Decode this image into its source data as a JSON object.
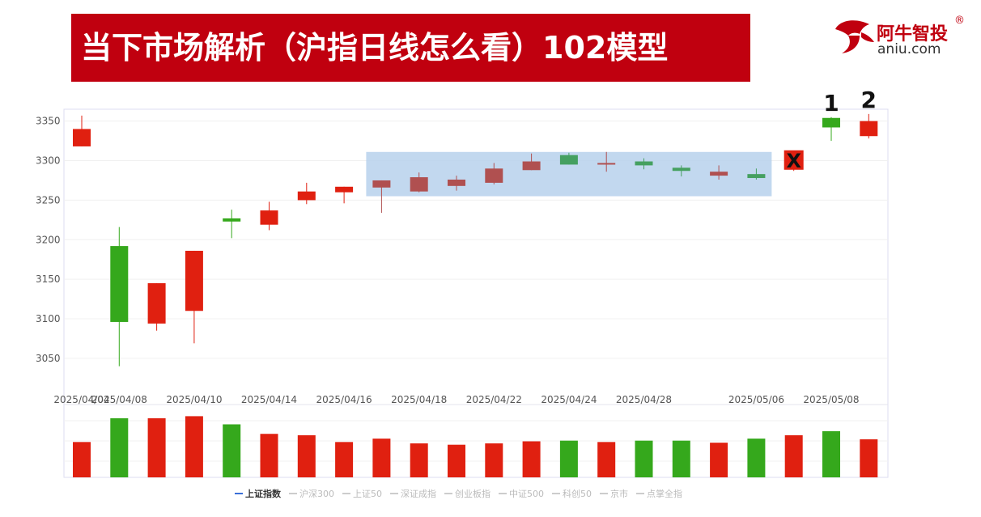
{
  "title": "当下市场解析（沪指日线怎么看）102模型",
  "logo": {
    "name_cn": "阿牛智投",
    "reg": "®",
    "domain": "aniu.com"
  },
  "colors": {
    "up": "#e02010",
    "down": "#35a81c",
    "highlight": "#b7d1ec",
    "banner": "#c0000f"
  },
  "chart_data": {
    "type": "candlestick",
    "ylim": [
      3010,
      3365
    ],
    "yticks": [
      3050,
      3100,
      3150,
      3200,
      3250,
      3300,
      3350
    ],
    "xticklabels": [
      {
        "index": 0,
        "label": "2025/04/04"
      },
      {
        "index": 1,
        "label": "2025/04/08"
      },
      {
        "index": 3,
        "label": "2025/04/10"
      },
      {
        "index": 5,
        "label": "2025/04/14"
      },
      {
        "index": 7,
        "label": "2025/04/16"
      },
      {
        "index": 9,
        "label": "2025/04/18"
      },
      {
        "index": 11,
        "label": "2025/04/22"
      },
      {
        "index": 13,
        "label": "2025/04/24"
      },
      {
        "index": 15,
        "label": "2025/04/28"
      },
      {
        "index": 18,
        "label": "2025/05/06"
      },
      {
        "index": 20,
        "label": "2025/05/08"
      }
    ],
    "candles": [
      {
        "open": 3318,
        "close": 3340,
        "high": 3357,
        "low": 3318,
        "color": "up"
      },
      {
        "open": 3192,
        "close": 3096,
        "high": 3216,
        "low": 3040,
        "color": "down"
      },
      {
        "open": 3094,
        "close": 3145,
        "high": 3145,
        "low": 3085,
        "color": "up"
      },
      {
        "open": 3110,
        "close": 3186,
        "high": 3186,
        "low": 3069,
        "color": "up"
      },
      {
        "open": 3227,
        "close": 3223,
        "high": 3238,
        "low": 3202,
        "color": "down"
      },
      {
        "open": 3219,
        "close": 3237,
        "high": 3248,
        "low": 3212,
        "color": "up"
      },
      {
        "open": 3250,
        "close": 3261,
        "high": 3272,
        "low": 3245,
        "color": "up"
      },
      {
        "open": 3260,
        "close": 3267,
        "high": 3267,
        "low": 3246,
        "color": "up"
      },
      {
        "open": 3266,
        "close": 3275,
        "high": 3275,
        "low": 3234,
        "color": "up"
      },
      {
        "open": 3261,
        "close": 3279,
        "high": 3285,
        "low": 3260,
        "color": "up"
      },
      {
        "open": 3268,
        "close": 3276,
        "high": 3281,
        "low": 3262,
        "color": "up"
      },
      {
        "open": 3272,
        "close": 3290,
        "high": 3297,
        "low": 3270,
        "color": "up"
      },
      {
        "open": 3288,
        "close": 3299,
        "high": 3309,
        "low": 3288,
        "color": "up"
      },
      {
        "open": 3307,
        "close": 3295,
        "high": 3310,
        "low": 3295,
        "color": "down"
      },
      {
        "open": 3295,
        "close": 3297,
        "high": 3311,
        "low": 3286,
        "color": "up"
      },
      {
        "open": 3299,
        "close": 3294,
        "high": 3303,
        "low": 3289,
        "color": "down"
      },
      {
        "open": 3291,
        "close": 3287,
        "high": 3294,
        "low": 3280,
        "color": "down"
      },
      {
        "open": 3281,
        "close": 3286,
        "high": 3294,
        "low": 3276,
        "color": "up"
      },
      {
        "open": 3283,
        "close": 3278,
        "high": 3290,
        "low": 3276,
        "color": "down"
      },
      {
        "open": 3292,
        "close": 3311,
        "high": 3311,
        "low": 3287,
        "color": "up"
      },
      {
        "open": 3354,
        "close": 3342,
        "high": 3355,
        "low": 3325,
        "color": "down"
      },
      {
        "open": 3331,
        "close": 3350,
        "high": 3359,
        "low": 3328,
        "color": "up"
      }
    ],
    "volume": [
      0.52,
      0.87,
      0.87,
      0.9,
      0.78,
      0.64,
      0.62,
      0.52,
      0.57,
      0.5,
      0.48,
      0.5,
      0.53,
      0.54,
      0.52,
      0.54,
      0.54,
      0.51,
      0.57,
      0.62,
      0.68,
      0.56
    ],
    "highlight_range": {
      "from_index": 8,
      "to_index": 18,
      "low": 3255,
      "high": 3311
    },
    "annotations": [
      {
        "index": 19,
        "text": "X",
        "boxed": true
      },
      {
        "index": 20,
        "text": "1"
      },
      {
        "index": 21,
        "text": "2"
      }
    ],
    "legend": [
      {
        "label": "上证指数",
        "active": true
      },
      {
        "label": "沪深300",
        "active": false
      },
      {
        "label": "上证50",
        "active": false
      },
      {
        "label": "深证成指",
        "active": false
      },
      {
        "label": "创业板指",
        "active": false
      },
      {
        "label": "中证500",
        "active": false
      },
      {
        "label": "科创50",
        "active": false
      },
      {
        "label": "京市",
        "active": false
      },
      {
        "label": "点掌全指",
        "active": false
      }
    ]
  }
}
